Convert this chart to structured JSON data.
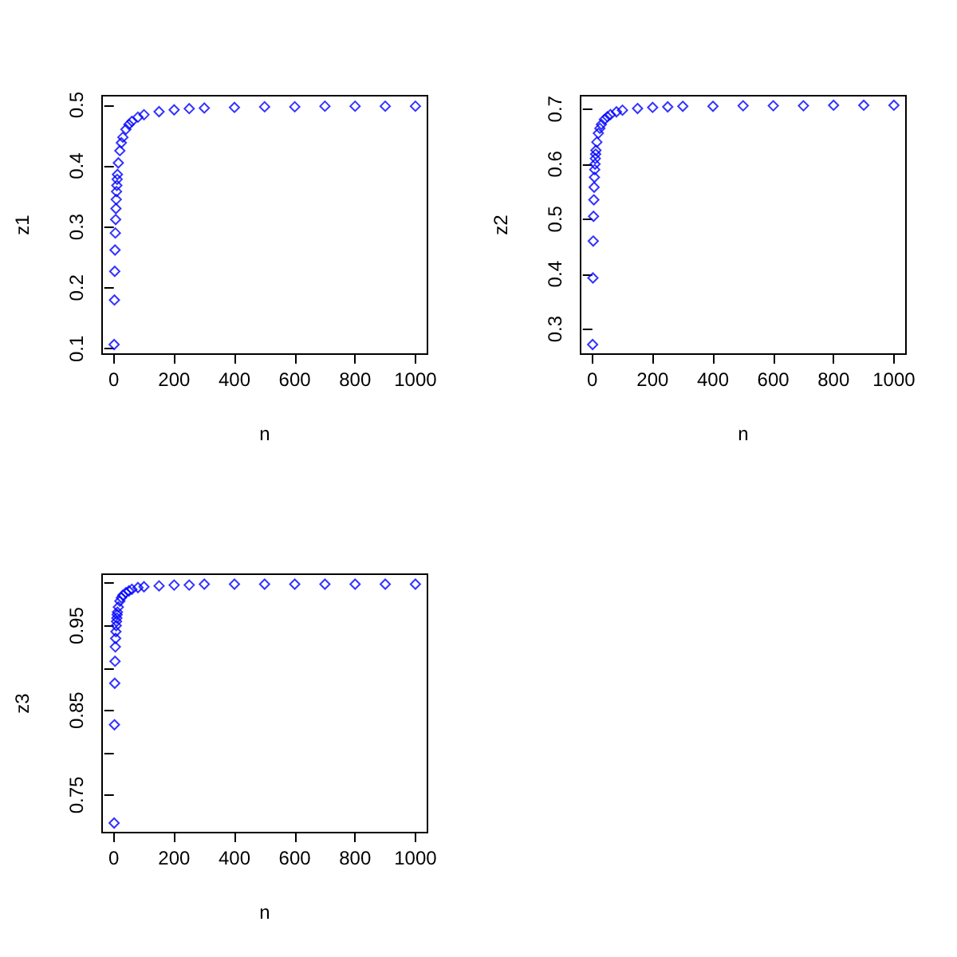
{
  "chart_data": [
    {
      "type": "scatter",
      "xlabel": "n",
      "ylabel": "z1",
      "marker": "diamond",
      "color": "#0000ff",
      "x": [
        1,
        2,
        3,
        4,
        5,
        6,
        7,
        8,
        9,
        10,
        11,
        12,
        15,
        20,
        25,
        30,
        40,
        50,
        60,
        80,
        100,
        150,
        200,
        250,
        300,
        400,
        500,
        600,
        700,
        800,
        900,
        1000
      ],
      "values": [
        0.107,
        0.18,
        0.227,
        0.262,
        0.29,
        0.312,
        0.33,
        0.345,
        0.358,
        0.368,
        0.378,
        0.386,
        0.405,
        0.425,
        0.438,
        0.447,
        0.46,
        0.468,
        0.473,
        0.48,
        0.484,
        0.489,
        0.492,
        0.494,
        0.495,
        0.496,
        0.497,
        0.497,
        0.498,
        0.498,
        0.498,
        0.498
      ],
      "xlim": [
        -38.96,
        1039.96
      ],
      "ylim": [
        0.0913,
        0.5152
      ],
      "xticks": [
        0,
        200,
        400,
        600,
        800,
        1000
      ],
      "yticks": [
        0.1,
        0.2,
        0.3,
        0.4,
        0.5
      ]
    },
    {
      "type": "scatter",
      "xlabel": "n",
      "ylabel": "z2",
      "marker": "diamond",
      "color": "#0000ff",
      "x": [
        1,
        2,
        3,
        4,
        5,
        6,
        7,
        8,
        9,
        10,
        11,
        12,
        15,
        20,
        25,
        30,
        40,
        50,
        60,
        80,
        100,
        150,
        200,
        250,
        300,
        400,
        500,
        600,
        700,
        800,
        900,
        1000
      ],
      "values": [
        0.272,
        0.393,
        0.46,
        0.505,
        0.535,
        0.558,
        0.576,
        0.59,
        0.6,
        0.61,
        0.618,
        0.625,
        0.64,
        0.656,
        0.665,
        0.672,
        0.681,
        0.686,
        0.69,
        0.695,
        0.698,
        0.701,
        0.703,
        0.704,
        0.705,
        0.705,
        0.706,
        0.706,
        0.706,
        0.707,
        0.707,
        0.707
      ],
      "xlim": [
        -38.96,
        1039.96
      ],
      "ylim": [
        0.2546,
        0.7243
      ],
      "xticks": [
        0,
        200,
        400,
        600,
        800,
        1000
      ],
      "yticks": [
        0.3,
        0.4,
        0.5,
        0.6,
        0.7
      ]
    },
    {
      "type": "scatter",
      "xlabel": "n",
      "ylabel": "z3",
      "marker": "diamond",
      "color": "#0000ff",
      "x": [
        1,
        2,
        3,
        4,
        5,
        6,
        7,
        8,
        9,
        10,
        11,
        12,
        15,
        20,
        25,
        30,
        40,
        50,
        60,
        80,
        100,
        150,
        200,
        250,
        300,
        400,
        500,
        600,
        700,
        800,
        900,
        1000
      ],
      "values": [
        0.717,
        0.833,
        0.882,
        0.908,
        0.925,
        0.935,
        0.943,
        0.95,
        0.955,
        0.959,
        0.963,
        0.966,
        0.972,
        0.979,
        0.983,
        0.986,
        0.989,
        0.991,
        0.993,
        0.995,
        0.996,
        0.997,
        0.998,
        0.998,
        0.999,
        0.999,
        0.999,
        0.999,
        0.999,
        0.999,
        0.999,
        0.999
      ],
      "xlim": [
        -38.96,
        1039.96
      ],
      "ylim": [
        0.7057,
        1.0108
      ],
      "xticks": [
        0,
        200,
        400,
        600,
        800,
        1000
      ],
      "yticks": [
        {
          "value": 0.75,
          "label": "0.75"
        },
        {
          "value": 0.8,
          "label": null
        },
        {
          "value": 0.85,
          "label": "0.85"
        },
        {
          "value": 0.9,
          "label": null
        },
        {
          "value": 0.95,
          "label": "0.95"
        },
        {
          "value": 1.0,
          "label": null
        }
      ]
    }
  ]
}
